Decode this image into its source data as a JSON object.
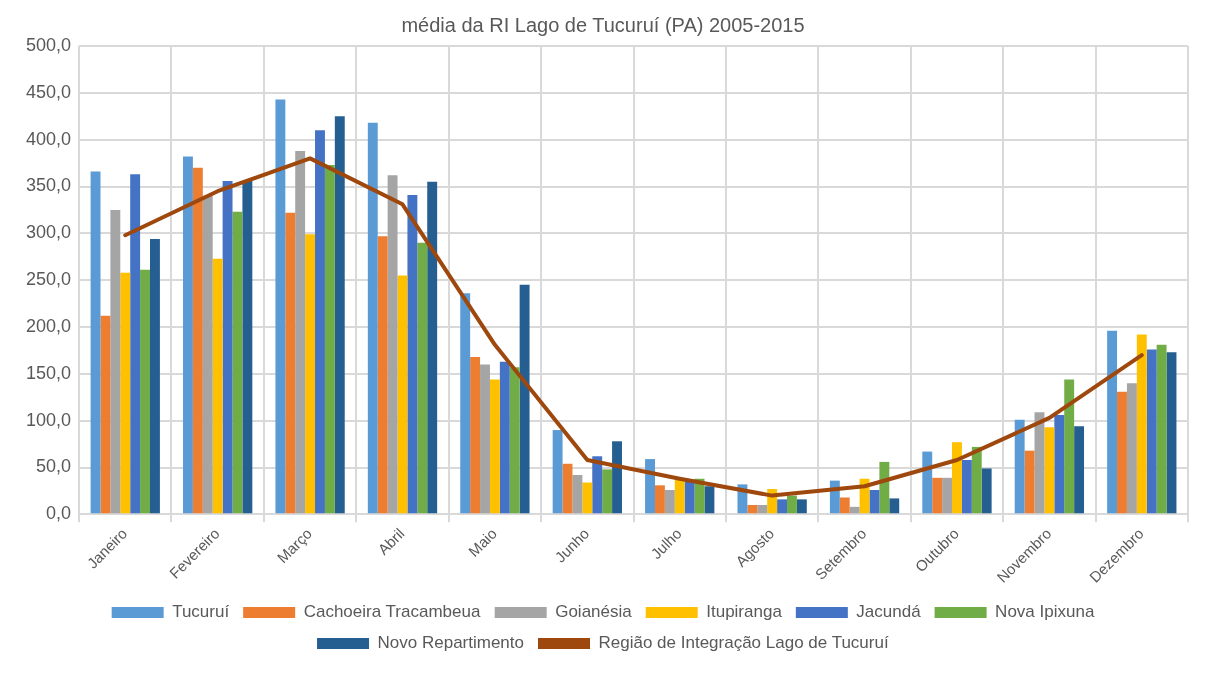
{
  "chart_data": {
    "type": "bar",
    "title": "média da RI Lago de Tucuruí (PA) 2005-2015",
    "categories": [
      "Janeiro",
      "Fevereiro",
      "Março",
      "Abril",
      "Maio",
      "Junho",
      "Julho",
      "Agosto",
      "Setembro",
      "Outubro",
      "Novembro",
      "Dezembro"
    ],
    "series": [
      {
        "name": "Tucuruí",
        "color": "#5b9bd5",
        "values": [
          366,
          382,
          443,
          418,
          236,
          90,
          59,
          32,
          36,
          67,
          101,
          196
        ]
      },
      {
        "name": "Cachoeira Tracambeua",
        "color": "#ed7d31",
        "values": [
          212,
          370,
          322,
          297,
          168,
          54,
          31,
          10,
          18,
          39,
          68,
          131
        ]
      },
      {
        "name": "Goianésia",
        "color": "#a5a5a5",
        "values": [
          325,
          340,
          388,
          362,
          160,
          42,
          26,
          10,
          8,
          39,
          109,
          140
        ]
      },
      {
        "name": "Itupiranga",
        "color": "#ffc000",
        "values": [
          258,
          273,
          299,
          255,
          144,
          34,
          37,
          27,
          38,
          77,
          93,
          192
        ]
      },
      {
        "name": "Jacundá",
        "color": "#4472c4",
        "values": [
          363,
          356,
          410,
          341,
          163,
          62,
          37,
          16,
          26,
          58,
          106,
          176
        ]
      },
      {
        "name": "Nova Ipixuna",
        "color": "#70ad47",
        "values": [
          261,
          323,
          373,
          290,
          157,
          48,
          38,
          20,
          56,
          72,
          144,
          181
        ]
      },
      {
        "name": "Novo Repartimento",
        "color": "#255e91",
        "values": [
          294,
          356,
          425,
          355,
          245,
          78,
          30,
          16,
          17,
          49,
          94,
          173
        ]
      },
      {
        "name": "Região de Integração Lago de Tucuruí",
        "type": "line",
        "color": "#9e480e",
        "values": [
          298,
          345,
          380,
          331,
          181,
          58,
          38,
          20,
          30,
          58,
          103,
          170
        ]
      }
    ],
    "ylim": [
      0,
      500
    ],
    "yticks": [
      {
        "value": 0,
        "label": "0,0"
      },
      {
        "value": 50,
        "label": "50,0"
      },
      {
        "value": 100,
        "label": "100,0"
      },
      {
        "value": 150,
        "label": "150,0"
      },
      {
        "value": 200,
        "label": "200,0"
      },
      {
        "value": 250,
        "label": "250,0"
      },
      {
        "value": 300,
        "label": "300,0"
      },
      {
        "value": 350,
        "label": "350,0"
      },
      {
        "value": 400,
        "label": "400,0"
      },
      {
        "value": 450,
        "label": "450,0"
      },
      {
        "value": 500,
        "label": "500,0"
      }
    ],
    "grid": true,
    "legend": "bottom",
    "marker": "none"
  }
}
